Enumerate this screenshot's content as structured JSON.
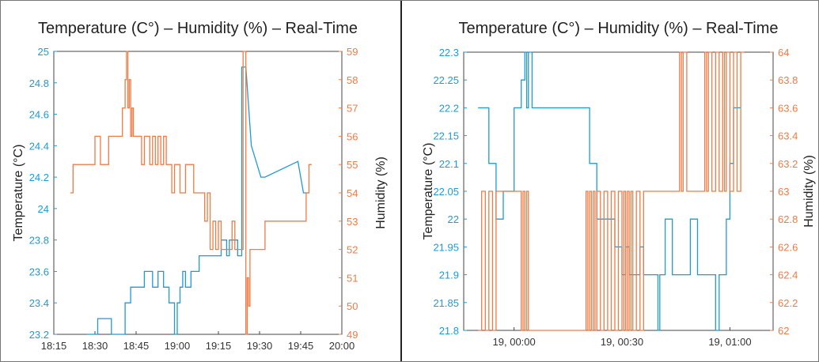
{
  "chart_data": [
    {
      "type": "line",
      "title": "Temperature (C°) – Humidity (%) – Real-Time",
      "ylabel_left": "Temperature (°C)",
      "ylabel_right": "Humidity (%)",
      "xlabel": "",
      "x_ticks": [
        "18:15",
        "18:30",
        "18:45",
        "19:00",
        "19:15",
        "19:30",
        "19:45",
        "20:00"
      ],
      "x_tick_values": [
        0,
        15,
        30,
        45,
        60,
        75,
        90,
        105
      ],
      "xlim": [
        0,
        105
      ],
      "y_left_ticks": [
        "23.2",
        "23.4",
        "23.6",
        "23.8",
        "24",
        "24.2",
        "24.4",
        "24.6",
        "24.8",
        "25"
      ],
      "ylim_left": [
        23.2,
        25
      ],
      "y_right_ticks": [
        "49",
        "50",
        "51",
        "52",
        "53",
        "54",
        "55",
        "56",
        "57",
        "58",
        "59"
      ],
      "ylim_right": [
        49,
        59
      ],
      "grid": false,
      "series": [
        {
          "axis": "left",
          "color": "#1f9ad6",
          "x": [
            12,
            16,
            16,
            21,
            21,
            24,
            24,
            26,
            26,
            28,
            28,
            31,
            31,
            33,
            33,
            36,
            36,
            38,
            38,
            40,
            40,
            42,
            42,
            44,
            44,
            45,
            45,
            46,
            46,
            47,
            47,
            48,
            48,
            50,
            50,
            51,
            51,
            53,
            53,
            58,
            58,
            61,
            61,
            63,
            63,
            64,
            64,
            67,
            67,
            68.5,
            68.5,
            70,
            70,
            72,
            75.5,
            77,
            89,
            91,
            91,
            93
          ],
          "y": [
            23.2,
            23.2,
            23.3,
            23.3,
            23.2,
            23.2,
            23.2,
            23.2,
            23.4,
            23.4,
            23.5,
            23.5,
            23.5,
            23.5,
            23.6,
            23.6,
            23.5,
            23.5,
            23.6,
            23.6,
            23.5,
            23.5,
            23.4,
            23.4,
            23.2,
            23.2,
            23.4,
            23.4,
            23.5,
            23.5,
            23.6,
            23.6,
            23.5,
            23.5,
            23.6,
            23.6,
            23.6,
            23.6,
            23.7,
            23.7,
            23.7,
            23.7,
            23.8,
            23.8,
            23.7,
            23.7,
            23.8,
            23.8,
            23.7,
            23.7,
            24.9,
            24.9,
            24.9,
            24.4,
            24.2,
            24.2,
            24.3,
            24.1,
            24.1,
            24.1
          ]
        },
        {
          "axis": "right",
          "color": "#ef7b45",
          "x": [
            6,
            7,
            7,
            8,
            8,
            15,
            15,
            17,
            17,
            20,
            20,
            25,
            25,
            26,
            26,
            26.5,
            26.5,
            27,
            27,
            27.5,
            27.5,
            28,
            28,
            28.5,
            28.5,
            29,
            29,
            30,
            30,
            31,
            31,
            32,
            32,
            33,
            33,
            35,
            35,
            36,
            36,
            37,
            37,
            38,
            38,
            39,
            39,
            40,
            40,
            41,
            41,
            42,
            42,
            43,
            43,
            44,
            44,
            46,
            46,
            48,
            48,
            51,
            51,
            55,
            55,
            56,
            56,
            57,
            57,
            58,
            58,
            59,
            59,
            60,
            60,
            61,
            61,
            62,
            62,
            63,
            63,
            64,
            64,
            65,
            65,
            66,
            66,
            69,
            69,
            70,
            70,
            70.5,
            70.5,
            71,
            71,
            71.5,
            71.5,
            72,
            72,
            73,
            73,
            75,
            75,
            77,
            77,
            92,
            92,
            93,
            93,
            94
          ],
          "y": [
            54,
            54,
            55,
            55,
            55,
            55,
            56,
            56,
            55,
            55,
            56,
            56,
            57,
            57,
            58,
            58,
            59,
            59,
            57,
            57,
            58,
            58,
            56,
            56,
            57,
            57,
            56,
            56,
            56,
            56,
            56,
            56,
            55,
            55,
            56,
            56,
            55,
            55,
            56,
            56,
            55,
            55,
            56,
            56,
            55,
            55,
            56,
            56,
            55,
            55,
            55,
            55,
            54,
            54,
            55,
            55,
            54,
            54,
            55,
            55,
            54,
            54,
            53,
            53,
            54,
            54,
            52,
            52,
            53,
            53,
            52,
            52,
            53,
            53,
            52,
            52,
            52,
            52,
            52,
            52,
            52,
            52,
            53,
            53,
            52,
            52,
            59,
            59,
            49,
            49,
            51,
            51,
            50,
            50,
            52,
            52,
            52,
            52,
            52,
            52,
            52,
            52,
            53,
            53,
            54,
            54,
            55,
            55
          ]
        }
      ]
    },
    {
      "type": "line",
      "title": "Temperature (C°) – Humidity (%) – Real-Time",
      "ylabel_left": "Temperature (°C)",
      "ylabel_right": "Humidity (%)",
      "xlabel": "",
      "x_ticks": [
        "19, 00:00",
        "19, 00:30",
        "19, 01:00"
      ],
      "x_tick_values": [
        0,
        30,
        60
      ],
      "xlim": [
        -14,
        72
      ],
      "y_left_ticks": [
        "21.8",
        "21.85",
        "21.9",
        "21.95",
        "22",
        "22.05",
        "22.1",
        "22.15",
        "22.2",
        "22.25",
        "22.3"
      ],
      "ylim_left": [
        21.8,
        22.3
      ],
      "y_right_ticks": [
        "62",
        "62.2",
        "62.4",
        "62.6",
        "62.8",
        "63",
        "63.2",
        "63.4",
        "63.6",
        "63.8",
        "64"
      ],
      "ylim_right": [
        62,
        64
      ],
      "grid": false,
      "series": [
        {
          "axis": "left",
          "color": "#1f9ad6",
          "x": [
            -10,
            -7,
            -7,
            -5,
            -5,
            -3,
            -3,
            0,
            0,
            2,
            2,
            3,
            3,
            3.5,
            3.5,
            4,
            4,
            4.5,
            4.5,
            5,
            5,
            6,
            6,
            21,
            21,
            23,
            23,
            28,
            28,
            30,
            30,
            31,
            31,
            32,
            32,
            33,
            33,
            34,
            34,
            35,
            35,
            36,
            36,
            40,
            40,
            40.5,
            40.5,
            42,
            42,
            44,
            44,
            49,
            49,
            51,
            51,
            56,
            56,
            57,
            57,
            59,
            59,
            60,
            60,
            61,
            61,
            62,
            62,
            63
          ],
          "y": [
            22.2,
            22.2,
            22.1,
            22.1,
            22.0,
            22.0,
            22.05,
            22.05,
            22.2,
            22.2,
            22.25,
            22.25,
            22.3,
            22.3,
            22.2,
            22.2,
            22.3,
            22.3,
            22.3,
            22.3,
            22.2,
            22.2,
            22.2,
            22.2,
            22.1,
            22.1,
            22.0,
            22.0,
            21.95,
            21.95,
            21.9,
            21.9,
            21.95,
            21.95,
            21.9,
            21.9,
            21.9,
            21.9,
            21.9,
            21.9,
            21.95,
            21.95,
            21.9,
            21.9,
            21.8,
            21.8,
            21.9,
            21.9,
            22.0,
            22.0,
            21.9,
            21.9,
            22.0,
            22.0,
            21.9,
            21.9,
            21.8,
            21.8,
            21.9,
            21.9,
            22.0,
            22.0,
            22.1,
            22.1,
            22.2,
            22.2,
            22.2,
            22.2
          ]
        },
        {
          "axis": "right",
          "color": "#ef7b45",
          "x": [
            -10,
            -9,
            -9,
            -8,
            -8,
            -7,
            -7,
            -6,
            -6,
            -5,
            -5,
            2,
            2,
            2.5,
            2.5,
            3,
            3,
            3.5,
            3.5,
            4,
            4,
            20,
            20,
            20.5,
            20.5,
            21,
            21,
            21.5,
            21.5,
            22,
            22,
            22.5,
            22.5,
            23,
            23,
            24,
            24,
            25,
            25,
            26,
            26,
            27,
            27,
            28,
            28,
            29,
            29,
            30,
            30,
            30.5,
            30.5,
            31,
            31,
            31.5,
            31.5,
            32,
            32,
            32.5,
            32.5,
            33,
            33,
            34,
            34,
            35,
            35,
            36,
            36,
            37,
            37,
            42,
            42,
            46,
            46,
            46.5,
            46.5,
            47,
            47,
            48,
            48,
            49,
            49,
            53,
            53,
            53.5,
            53.5,
            54,
            54,
            55,
            55,
            56,
            56,
            57,
            57,
            58,
            58,
            58.5,
            58.5,
            59,
            59,
            60,
            60,
            61,
            61,
            62,
            62,
            63,
            63,
            64
          ],
          "y": [
            62,
            62,
            63,
            63,
            62,
            62,
            63,
            63,
            62,
            62,
            63,
            63,
            62,
            62,
            63,
            63,
            62,
            62,
            63,
            63,
            62,
            62,
            63,
            63,
            62,
            62,
            63,
            63,
            62,
            62,
            63,
            63,
            62,
            62,
            63,
            63,
            62,
            62,
            63,
            63,
            62,
            62,
            63,
            63,
            62,
            62,
            63,
            63,
            62,
            62,
            63,
            63,
            62,
            62,
            63,
            63,
            62,
            62,
            63,
            63,
            62,
            62,
            63,
            63,
            62,
            62,
            63,
            63,
            63,
            63,
            63,
            63,
            64,
            64,
            63,
            63,
            64,
            64,
            63,
            63,
            63,
            63,
            64,
            64,
            63,
            63,
            64,
            64,
            63,
            63,
            64,
            64,
            63,
            63,
            64,
            64,
            63,
            63,
            64,
            64,
            63,
            63,
            64,
            64,
            63,
            63,
            64,
            64
          ]
        }
      ]
    }
  ]
}
